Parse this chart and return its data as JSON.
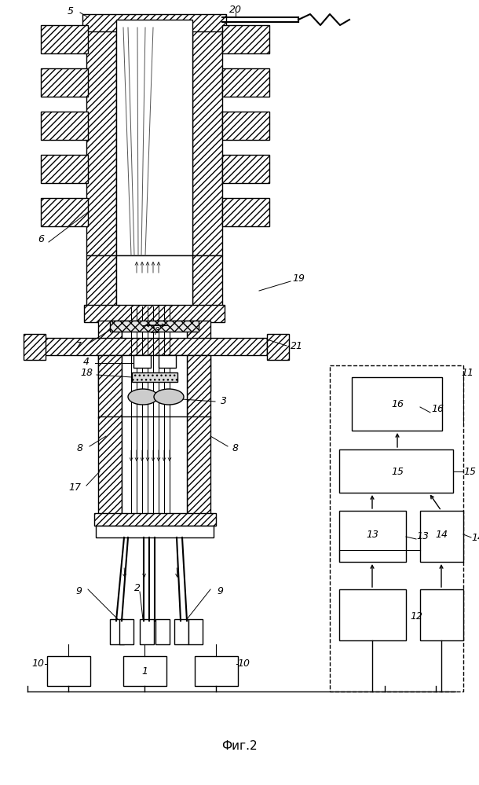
{
  "bg": "#ffffff",
  "lc": "#000000",
  "title": "Фиг.2",
  "figw": 6.1,
  "figh": 9.99,
  "dpi": 100
}
